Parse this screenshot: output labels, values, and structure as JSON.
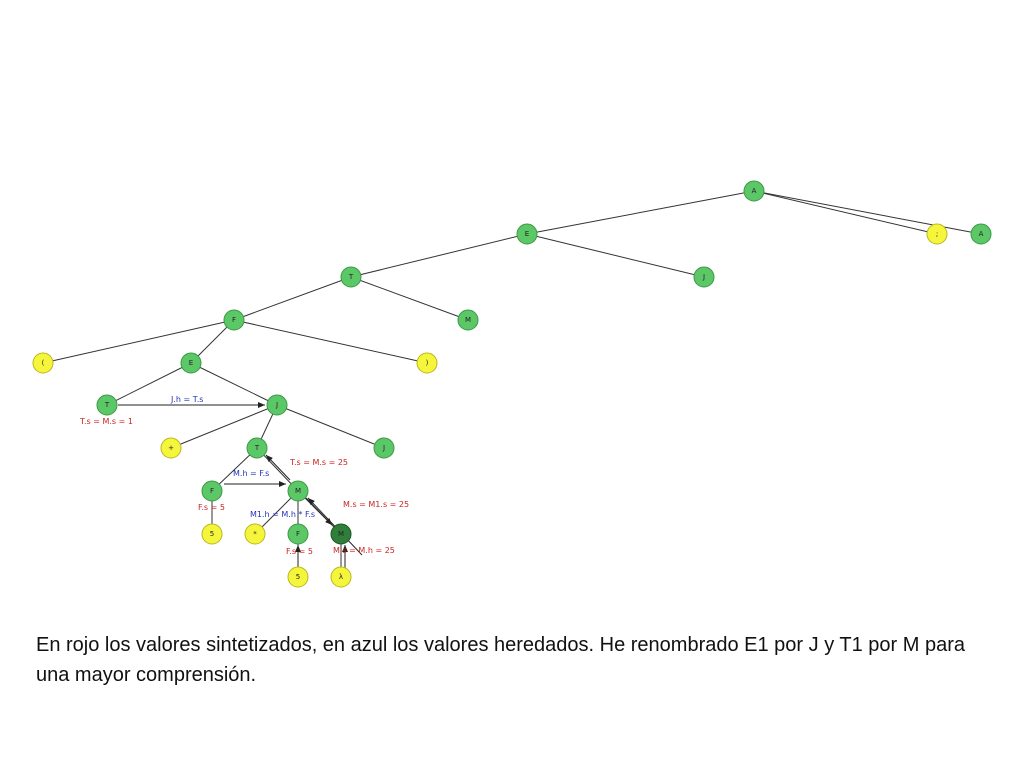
{
  "colors": {
    "node_green": "#5cc767",
    "node_yellow": "#f5f53c",
    "node_selected": "#2f7f3a",
    "edge": "#333333",
    "synth_text": "#cc2222",
    "inherit_text": "#2233bb"
  },
  "tree": {
    "nodes": [
      {
        "id": "A0",
        "label": "A",
        "kind": "green"
      },
      {
        "id": "E0",
        "label": "E",
        "kind": "green"
      },
      {
        "id": "semi",
        "label": ";",
        "kind": "yellow"
      },
      {
        "id": "A1",
        "label": "A",
        "kind": "green"
      },
      {
        "id": "T0",
        "label": "T",
        "kind": "green"
      },
      {
        "id": "J0",
        "label": "J",
        "kind": "green"
      },
      {
        "id": "F0",
        "label": "F",
        "kind": "green"
      },
      {
        "id": "M0",
        "label": "M",
        "kind": "green"
      },
      {
        "id": "lp",
        "label": "(",
        "kind": "yellow"
      },
      {
        "id": "E1",
        "label": "E",
        "kind": "green"
      },
      {
        "id": "rp",
        "label": ")",
        "kind": "yellow"
      },
      {
        "id": "T1",
        "label": "T",
        "kind": "green"
      },
      {
        "id": "J1",
        "label": "J",
        "kind": "green"
      },
      {
        "id": "plus",
        "label": "+",
        "kind": "yellow"
      },
      {
        "id": "T2",
        "label": "T",
        "kind": "green"
      },
      {
        "id": "J2",
        "label": "J",
        "kind": "green"
      },
      {
        "id": "F1",
        "label": "F",
        "kind": "green"
      },
      {
        "id": "M1",
        "label": "M",
        "kind": "green"
      },
      {
        "id": "five1",
        "label": "5",
        "kind": "yellow"
      },
      {
        "id": "star",
        "label": "*",
        "kind": "yellow"
      },
      {
        "id": "F2",
        "label": "F",
        "kind": "green"
      },
      {
        "id": "M2",
        "label": "M",
        "kind": "selected"
      },
      {
        "id": "five2",
        "label": "5",
        "kind": "yellow"
      },
      {
        "id": "lambda",
        "label": "λ",
        "kind": "yellow"
      }
    ],
    "edges": [
      [
        "A0",
        "E0"
      ],
      [
        "A0",
        "semi"
      ],
      [
        "A0",
        "A1"
      ],
      [
        "E0",
        "T0"
      ],
      [
        "E0",
        "J0"
      ],
      [
        "T0",
        "F0"
      ],
      [
        "T0",
        "M0"
      ],
      [
        "F0",
        "lp"
      ],
      [
        "F0",
        "E1"
      ],
      [
        "F0",
        "rp"
      ],
      [
        "E1",
        "T1"
      ],
      [
        "E1",
        "J1"
      ],
      [
        "J1",
        "plus"
      ],
      [
        "J1",
        "T2"
      ],
      [
        "J1",
        "J2"
      ],
      [
        "T2",
        "F1"
      ],
      [
        "T2",
        "M1"
      ],
      [
        "F1",
        "five1"
      ],
      [
        "M1",
        "star"
      ],
      [
        "M1",
        "F2"
      ],
      [
        "M1",
        "M2"
      ],
      [
        "F2",
        "five2"
      ],
      [
        "M2",
        "lambda"
      ]
    ],
    "annotations": [
      {
        "id": "ann-jh",
        "text": "J.h = T.s",
        "type": "inherited"
      },
      {
        "id": "ann-ts1",
        "text": "T.s = M.s = 1",
        "type": "synthesized"
      },
      {
        "id": "ann-ts25",
        "text": "T.s = M.s = 25",
        "type": "synthesized"
      },
      {
        "id": "ann-mh",
        "text": "M.h = F.s",
        "type": "inherited"
      },
      {
        "id": "ann-fs1",
        "text": "F.s = 5",
        "type": "synthesized"
      },
      {
        "id": "ann-m1h",
        "text": "M1.h = M.h * F.s",
        "type": "inherited"
      },
      {
        "id": "ann-ms1",
        "text": "M.s = M1.s = 25",
        "type": "synthesized"
      },
      {
        "id": "ann-fs2",
        "text": "F.s = 5",
        "type": "synthesized"
      },
      {
        "id": "ann-msh",
        "text": "M.s = M.h = 25",
        "type": "synthesized"
      }
    ]
  },
  "caption": "En rojo los valores sintetizados, en azul los valores heredados. He renombrado E1 por J y T1 por M para una mayor comprensión."
}
